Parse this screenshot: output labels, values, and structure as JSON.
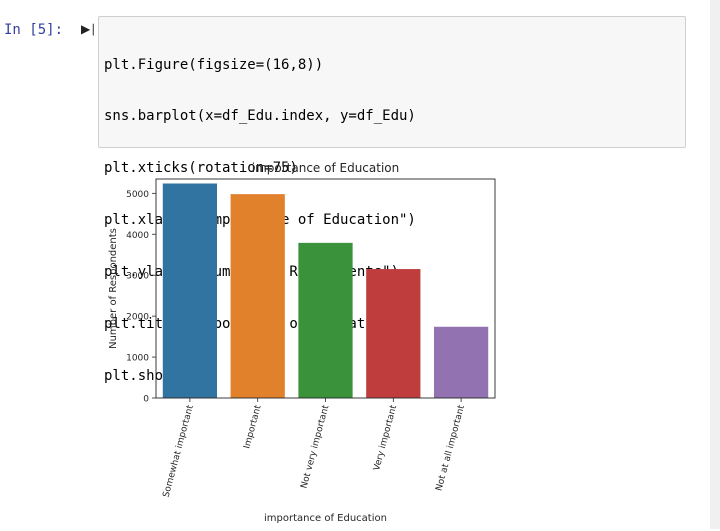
{
  "cell": {
    "prompt": "In [5]:",
    "run_icon": "run-cell-icon",
    "code_lines": [
      "plt.Figure(figsize=(16,8))",
      "sns.barplot(x=df_Edu.index, y=df_Edu)",
      "plt.xticks(rotation=75)",
      "plt.xlabel(\"importance of Education\")",
      "plt.ylabel(\"Number of Respondents\")",
      "plt.title(\"importance of Education\")",
      "plt.show()"
    ]
  },
  "chart_data": {
    "type": "bar",
    "title": "importance of Education",
    "xlabel": "importance of Education",
    "ylabel": "Number of Respondents",
    "categories": [
      "Somewhat important",
      "Important",
      "Not very important",
      "Very important",
      "Not at all important"
    ],
    "values": [
      5240,
      4980,
      3790,
      3150,
      1740
    ],
    "colors": [
      "#3274a1",
      "#e1812c",
      "#3a923a",
      "#c03d3e",
      "#9372b2"
    ],
    "ylim": [
      0,
      5350
    ],
    "yticks": [
      0,
      1000,
      2000,
      3000,
      4000,
      5000
    ],
    "xtick_rotation": 75,
    "grid": false
  }
}
